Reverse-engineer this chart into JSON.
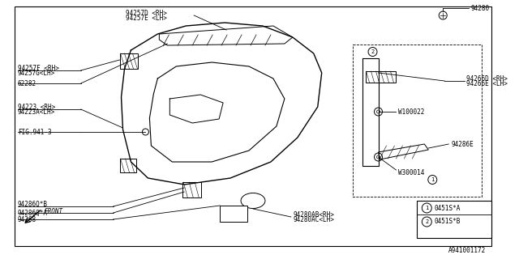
{
  "bg_color": "#ffffff",
  "border_color": "#000000",
  "line_color": "#000000",
  "title": "A941001172",
  "labels": {
    "94257D_RH": "94257D <RH>",
    "94257E_LH": "94257E <LH>",
    "94257F_RH": "94257F <RH>",
    "94257G_LH": "94257G<LH>",
    "62282": "62282",
    "94223_RH": "94223 <RH>",
    "94223A_LH": "94223A<LH>",
    "FIG941": "FIG.941-3",
    "94280": "94280",
    "94266D_RH": "94266D <RH>",
    "94266E_LH": "94266E <LH>",
    "W100022": "W100022",
    "94286E": "94286E",
    "W300014": "W300014",
    "94286Q_B": "94286Q*B",
    "94286Q_A": "94286Q*A",
    "94268": "94268",
    "94280AB_RH": "94280AB<RH>",
    "94280AC_LH": "94280AC<LH>",
    "legend1": "0451S*A",
    "legend2": "0451S*B",
    "front": "FRONT"
  },
  "font_size": 6.5,
  "small_font": 5.5
}
